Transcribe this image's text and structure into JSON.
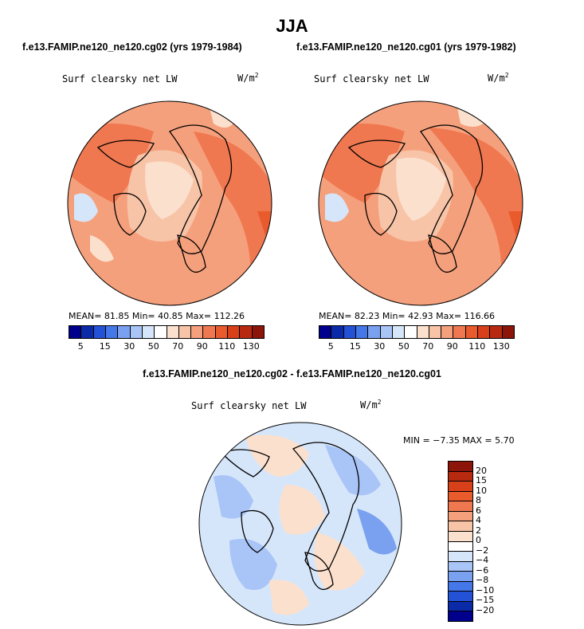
{
  "title": "JJA",
  "left_subtitle": "f.e13.FAMIP.ne120_ne120.cg02 (yrs 1979-1984)",
  "right_subtitle": "f.e13.FAMIP.ne120_ne120.cg01 (yrs 1979-1982)",
  "diff_title": "f.e13.FAMIP.ne120_ne120.cg02 - f.e13.FAMIP.ne120_ne120.cg01",
  "variable_label": "Surf clearsky net LW",
  "units_base": "W/m",
  "units_exp": "2",
  "left_stats": "MEAN=  81.85  Min=  40.85  Max= 112.26",
  "right_stats": "MEAN=  82.23  Min=  42.93  Max= 116.66",
  "diff_stats": "MIN =  −7.35 MAX =   5.70",
  "abs_colorbar": {
    "colors": [
      "#00008c",
      "#0a2aa8",
      "#2452d6",
      "#4477e8",
      "#7aa0f0",
      "#a9c4f6",
      "#d6e6fa",
      "#ffffff",
      "#fbe0cd",
      "#f8c4a8",
      "#f5a07c",
      "#f07850",
      "#e95a2c",
      "#d8401a",
      "#b82a10",
      "#8c1408"
    ],
    "ticks": [
      "5",
      "15",
      "30",
      "50",
      "70",
      "90",
      "110",
      "130"
    ]
  },
  "diff_colorbar": {
    "colors": [
      "#8c1408",
      "#b82a10",
      "#d8401a",
      "#e95a2c",
      "#f07850",
      "#f5a07c",
      "#f8c4a8",
      "#fbe0cd",
      "#ffffff",
      "#d6e6fa",
      "#a9c4f6",
      "#7aa0f0",
      "#4477e8",
      "#2452d6",
      "#0a2aa8",
      "#00008c"
    ],
    "ticks": [
      "20",
      "15",
      "10",
      "8",
      "6",
      "4",
      "2",
      "0",
      "−2",
      "−4",
      "−6",
      "−8",
      "−10",
      "−15",
      "−20"
    ]
  }
}
